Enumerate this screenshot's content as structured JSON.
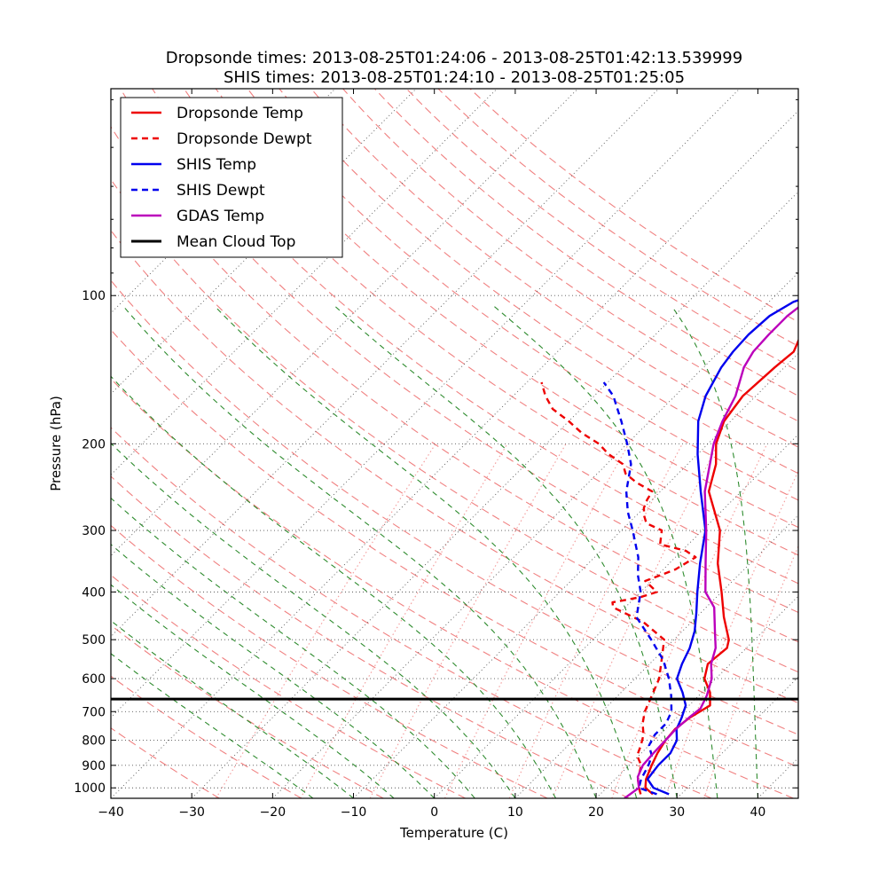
{
  "chart_data": {
    "type": "line",
    "title": "Dropsonde times: 2013-08-25T01:24:06 - 2013-08-25T01:42:13.539999",
    "subtitle": "SHIS times: 2013-08-25T01:24:10 - 2013-08-25T01:25:05",
    "xlabel": "Temperature (C)",
    "ylabel": "Pressure (hPa)",
    "xlim": [
      -40,
      45
    ],
    "ylim": [
      1050,
      38
    ],
    "x_ticks": [
      -40,
      -30,
      -20,
      -10,
      0,
      10,
      20,
      30,
      40
    ],
    "x_tick_labels": [
      "−40",
      "−30",
      "−20",
      "−10",
      "0",
      "10",
      "20",
      "30",
      "40"
    ],
    "y_ticks": [
      100,
      200,
      300,
      400,
      500,
      600,
      700,
      800,
      900,
      1000
    ],
    "y_tick_labels": [
      "100",
      "200",
      "300",
      "400",
      "500",
      "600",
      "700",
      "800",
      "900",
      "1000"
    ],
    "grid": true,
    "skew": "Skew-T log-P",
    "legend_position": "top-left",
    "mean_cloud_top_hpa": 660,
    "colors": {
      "dropsonde": "#ee0000",
      "shis": "#0000ee",
      "gdas": "#bb00bb",
      "cloud_top": "#000000",
      "dry_adiabat": "#f08080",
      "moist_adiabat": "#2e8b2e",
      "mixing_ratio": "#f4a0a0",
      "grid": "#555555"
    },
    "series": [
      {
        "name": "Dropsonde Temp",
        "style": "solid",
        "points": [
          [
            26.5,
            1030
          ],
          [
            24.8,
            1000
          ],
          [
            23.8,
            960
          ],
          [
            22.8,
            900
          ],
          [
            22.0,
            850
          ],
          [
            21.4,
            800
          ],
          [
            21.2,
            760
          ],
          [
            21.6,
            720
          ],
          [
            22.6,
            680
          ],
          [
            21.0,
            640
          ],
          [
            18.6,
            600
          ],
          [
            17.2,
            560
          ],
          [
            17.6,
            520
          ],
          [
            16.8,
            500
          ],
          [
            13.4,
            450
          ],
          [
            10.0,
            400
          ],
          [
            6.0,
            350
          ],
          [
            2.2,
            300
          ],
          [
            -4.0,
            250
          ],
          [
            -6.5,
            220
          ],
          [
            -9.0,
            200
          ],
          [
            -10.8,
            180
          ],
          [
            -11.6,
            160
          ],
          [
            -11.2,
            140
          ],
          [
            -10.8,
            130
          ],
          [
            -12.0,
            120
          ],
          [
            -12.8,
            110
          ],
          [
            -12.5,
            100
          ],
          [
            -11.0,
            95
          ],
          [
            -8.2,
            90
          ],
          [
            -5.8,
            85
          ],
          [
            -2.0,
            78
          ],
          [
            2.0,
            72
          ],
          [
            7.0,
            69
          ],
          [
            11.0,
            62
          ],
          [
            13.0,
            59
          ],
          [
            15.0,
            56
          ]
        ]
      },
      {
        "name": "Dropsonde Dewpt",
        "style": "dashed",
        "points": [
          [
            25.0,
            1030
          ],
          [
            24.0,
            1000
          ],
          [
            22.8,
            960
          ],
          [
            21.5,
            900
          ],
          [
            19.8,
            860
          ],
          [
            19.0,
            820
          ],
          [
            18.0,
            780
          ],
          [
            16.5,
            740
          ],
          [
            15.3,
            700
          ],
          [
            14.2,
            650
          ],
          [
            13.0,
            600
          ],
          [
            11.0,
            550
          ],
          [
            8.8,
            500
          ],
          [
            4.0,
            460
          ],
          [
            -1.5,
            430
          ],
          [
            -2.2,
            420
          ],
          [
            0.6,
            410
          ],
          [
            2.0,
            400
          ],
          [
            -0.8,
            380
          ],
          [
            1.5,
            360
          ],
          [
            2.5,
            340
          ],
          [
            0.5,
            330
          ],
          [
            -3.5,
            320
          ],
          [
            -5.0,
            300
          ],
          [
            -7.8,
            290
          ],
          [
            -9.0,
            280
          ],
          [
            -10.0,
            270
          ],
          [
            -10.6,
            260
          ],
          [
            -11.0,
            250
          ],
          [
            -14.0,
            240
          ],
          [
            -16.5,
            230
          ],
          [
            -18.0,
            220
          ],
          [
            -21.0,
            210
          ],
          [
            -23.5,
            200
          ],
          [
            -27.0,
            190
          ],
          [
            -30.0,
            180
          ],
          [
            -33.5,
            170
          ],
          [
            -36.0,
            160
          ],
          [
            -38.2,
            150
          ]
        ]
      },
      {
        "name": "SHIS Temp",
        "style": "solid",
        "points": [
          [
            28.5,
            1030
          ],
          [
            25.8,
            1000
          ],
          [
            24.0,
            960
          ],
          [
            23.6,
            900
          ],
          [
            23.6,
            850
          ],
          [
            22.8,
            800
          ],
          [
            21.4,
            760
          ],
          [
            20.6,
            720
          ],
          [
            19.6,
            680
          ],
          [
            17.6,
            640
          ],
          [
            15.2,
            600
          ],
          [
            14.0,
            560
          ],
          [
            13.0,
            520
          ],
          [
            11.5,
            480
          ],
          [
            9.4,
            440
          ],
          [
            7.0,
            400
          ],
          [
            3.8,
            350
          ],
          [
            0.4,
            300
          ],
          [
            -5.0,
            250
          ],
          [
            -10.0,
            210
          ],
          [
            -14.0,
            180
          ],
          [
            -16.2,
            160
          ],
          [
            -17.8,
            140
          ],
          [
            -18.3,
            130
          ],
          [
            -18.5,
            120
          ],
          [
            -18.2,
            110
          ],
          [
            -17.0,
            103
          ],
          [
            -15.5,
            100
          ],
          [
            -13.5,
            95
          ],
          [
            -10.5,
            90
          ],
          [
            -5.5,
            83
          ],
          [
            1.5,
            75
          ],
          [
            7.0,
            69
          ],
          [
            14.5,
            61
          ],
          [
            23.0,
            52
          ],
          [
            29.0,
            47
          ],
          [
            35.0,
            43
          ]
        ]
      },
      {
        "name": "SHIS Dewpt",
        "style": "dashed",
        "points": [
          [
            27.0,
            1030
          ],
          [
            24.0,
            1000
          ],
          [
            23.2,
            960
          ],
          [
            22.4,
            900
          ],
          [
            21.6,
            860
          ],
          [
            20.0,
            820
          ],
          [
            19.4,
            780
          ],
          [
            19.4,
            740
          ],
          [
            18.6,
            700
          ],
          [
            16.6,
            650
          ],
          [
            14.2,
            600
          ],
          [
            11.2,
            550
          ],
          [
            7.2,
            500
          ],
          [
            2.6,
            450
          ],
          [
            0.0,
            400
          ],
          [
            -2.4,
            370
          ],
          [
            -4.6,
            340
          ],
          [
            -8.6,
            300
          ],
          [
            -11.5,
            275
          ],
          [
            -14.2,
            250
          ],
          [
            -17.0,
            220
          ],
          [
            -20.0,
            200
          ],
          [
            -23.5,
            180
          ],
          [
            -27.6,
            160
          ],
          [
            -30.5,
            150
          ]
        ]
      },
      {
        "name": "GDAS Temp",
        "style": "solid",
        "points": [
          [
            23.5,
            1050
          ],
          [
            24.0,
            1000
          ],
          [
            22.5,
            950
          ],
          [
            21.7,
            900
          ],
          [
            21.5,
            850
          ],
          [
            21.4,
            800
          ],
          [
            21.3,
            760
          ],
          [
            21.5,
            720
          ],
          [
            21.8,
            690
          ],
          [
            21.0,
            650
          ],
          [
            19.5,
            600
          ],
          [
            17.6,
            560
          ],
          [
            16.2,
            520
          ],
          [
            14.0,
            480
          ],
          [
            11.0,
            430
          ],
          [
            8.0,
            400
          ],
          [
            4.5,
            350
          ],
          [
            0.5,
            300
          ],
          [
            -4.5,
            250
          ],
          [
            -9.3,
            200
          ],
          [
            -11.0,
            180
          ],
          [
            -12.5,
            160
          ],
          [
            -15.0,
            140
          ],
          [
            -15.8,
            130
          ],
          [
            -16.0,
            120
          ],
          [
            -16.0,
            110
          ],
          [
            -15.5,
            103
          ],
          [
            -14.0,
            98
          ],
          [
            -11.0,
            92
          ],
          [
            -6.0,
            85
          ],
          [
            3.0,
            73
          ],
          [
            12.0,
            63
          ],
          [
            22.0,
            52
          ],
          [
            28.0,
            47
          ],
          [
            32.0,
            44
          ]
        ]
      }
    ],
    "legend": [
      {
        "label": "Dropsonde Temp",
        "style": "solid",
        "color": "#ee0000"
      },
      {
        "label": "Dropsonde Dewpt",
        "style": "dashed",
        "color": "#ee0000"
      },
      {
        "label": "SHIS Temp",
        "style": "solid",
        "color": "#0000ee"
      },
      {
        "label": "SHIS Dewpt",
        "style": "dashed",
        "color": "#0000ee"
      },
      {
        "label": "GDAS Temp",
        "style": "solid",
        "color": "#bb00bb"
      },
      {
        "label": "Mean Cloud Top",
        "style": "solid",
        "color": "#000000"
      }
    ],
    "dry_adiabats_theta_c": [
      -30,
      -20,
      -10,
      0,
      10,
      20,
      30,
      40,
      50,
      60,
      70,
      80,
      90,
      100,
      110,
      120,
      130,
      140,
      150,
      160,
      170,
      180,
      190,
      200,
      210
    ],
    "moist_adiabats_base_c": [
      -15,
      -10,
      -5,
      0,
      5,
      10,
      15,
      20,
      25,
      30,
      35,
      40
    ],
    "mixing_ratios_gkg": [
      0.4,
      1,
      2,
      4,
      7,
      10,
      16,
      24,
      32
    ]
  }
}
